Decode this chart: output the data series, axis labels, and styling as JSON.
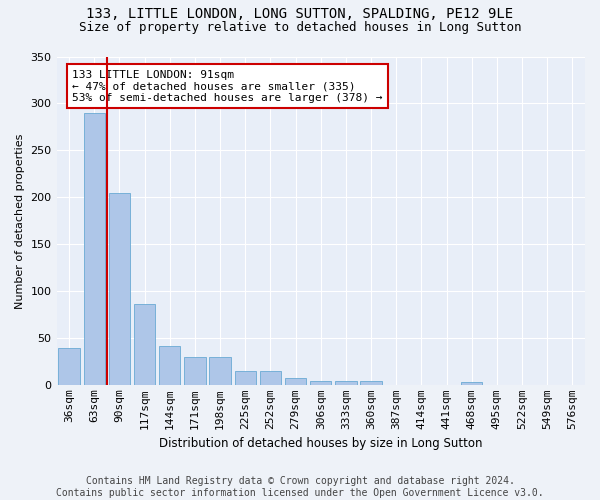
{
  "title1": "133, LITTLE LONDON, LONG SUTTON, SPALDING, PE12 9LE",
  "title2": "Size of property relative to detached houses in Long Sutton",
  "xlabel": "Distribution of detached houses by size in Long Sutton",
  "ylabel": "Number of detached properties",
  "categories": [
    "36sqm",
    "63sqm",
    "90sqm",
    "117sqm",
    "144sqm",
    "171sqm",
    "198sqm",
    "225sqm",
    "252sqm",
    "279sqm",
    "306sqm",
    "333sqm",
    "360sqm",
    "387sqm",
    "414sqm",
    "441sqm",
    "468sqm",
    "495sqm",
    "522sqm",
    "549sqm",
    "576sqm"
  ],
  "values": [
    40,
    290,
    205,
    87,
    42,
    30,
    30,
    15,
    15,
    8,
    5,
    5,
    5,
    0,
    0,
    0,
    4,
    0,
    0,
    0,
    0
  ],
  "bar_color": "#aec6e8",
  "bar_edge_color": "#6aaad4",
  "vline_color": "#cc0000",
  "vline_xindex": 1.5,
  "annotation_text": "133 LITTLE LONDON: 91sqm\n← 47% of detached houses are smaller (335)\n53% of semi-detached houses are larger (378) →",
  "annotation_box_color": "white",
  "annotation_box_edge_color": "#cc0000",
  "footnote": "Contains HM Land Registry data © Crown copyright and database right 2024.\nContains public sector information licensed under the Open Government Licence v3.0.",
  "ylim": [
    0,
    350
  ],
  "bg_color": "#eef2f8",
  "plot_bg_color": "#e8eef8",
  "grid_color": "white",
  "title_fontsize": 10,
  "subtitle_fontsize": 9,
  "footnote_fontsize": 7,
  "ylabel_fontsize": 8,
  "xlabel_fontsize": 8.5,
  "tick_fontsize": 8,
  "annotation_fontsize": 8
}
